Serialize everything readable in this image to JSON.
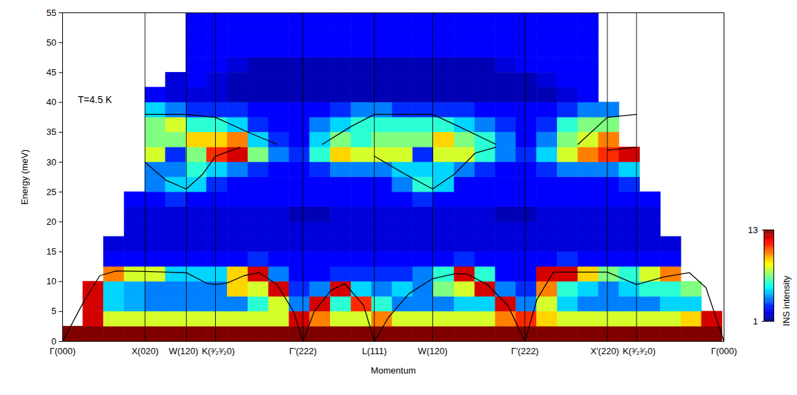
{
  "chart_data": {
    "type": "heatmap",
    "x_label": "Momentum",
    "y_label": "Energy (meV)",
    "annotations": [
      "T=4.5 K"
    ],
    "xlim": [
      0,
      16.038
    ],
    "xticks": [
      {
        "value": 0,
        "label": "Γ(000)"
      },
      {
        "value": 2,
        "label": "X(020)"
      },
      {
        "value": 3,
        "label": "W(120)"
      },
      {
        "value": 3.707,
        "label": "K(³⁄₂³⁄₂0)"
      },
      {
        "value": 5.828,
        "label": "Γ′(222)"
      },
      {
        "value": 7.56,
        "label": "L(111)"
      },
      {
        "value": 8.974,
        "label": "W(120)"
      },
      {
        "value": 11.21,
        "label": "Γ′(222)"
      },
      {
        "value": 13.21,
        "label": "X′(220)"
      },
      {
        "value": 13.917,
        "label": "K(³⁄₂³⁄₂0)"
      },
      {
        "value": 16.038,
        "label": "Γ(000)"
      }
    ],
    "ylim": [
      0,
      55
    ],
    "yticks": [
      0,
      5,
      10,
      15,
      20,
      25,
      30,
      35,
      40,
      45,
      50,
      55
    ],
    "grid": "x",
    "colorbar": {
      "label": "INS intensity",
      "range": [
        1,
        13
      ],
      "ticks": [
        1,
        13
      ]
    },
    "cells": {
      "x_bins": [
        0,
        0.5,
        1,
        1.5,
        2,
        2.5,
        3,
        3.5,
        4,
        4.5,
        5,
        5.5,
        6,
        6.5,
        7,
        7.5,
        8,
        8.5,
        9,
        9.5,
        10,
        10.5,
        11,
        11.5,
        12,
        12.5,
        13,
        13.5,
        14,
        14.5,
        15,
        15.5,
        16
      ],
      "y_bins": [
        0,
        2.5,
        5,
        7.5,
        10,
        12.5,
        15,
        17.5,
        20,
        22.5,
        25,
        27.5,
        30,
        32.5,
        35,
        37.5,
        40,
        42.5,
        45,
        47.5,
        50,
        52.5,
        55
      ],
      "values": [
        [
          13,
          13,
          13,
          13,
          13,
          13,
          13,
          13,
          13,
          13,
          13,
          13,
          13,
          13,
          13,
          13,
          13,
          13,
          13,
          13,
          13,
          13,
          13,
          13,
          13,
          13,
          13,
          13,
          13,
          13,
          13,
          13
        ],
        [
          null,
          12,
          8,
          8,
          8,
          8,
          8,
          8,
          8,
          8,
          8,
          12,
          10,
          8,
          8,
          10,
          8,
          8,
          8,
          8,
          8,
          10,
          11,
          9,
          8,
          8,
          8,
          8,
          8,
          8,
          9,
          12
        ],
        [
          null,
          12,
          5,
          4.5,
          4,
          4,
          4,
          4,
          4,
          6,
          8,
          4,
          12,
          6,
          11,
          6,
          4,
          4,
          4,
          5,
          5,
          12,
          4,
          8,
          5,
          4,
          4,
          4,
          4,
          5,
          5,
          null
        ],
        [
          null,
          12,
          5,
          4.5,
          4,
          4,
          4,
          4,
          9,
          8,
          12,
          3,
          4,
          12,
          5,
          4,
          5,
          4,
          7,
          8,
          12,
          4,
          3,
          10,
          6,
          5,
          4,
          5,
          6,
          6,
          7,
          null
        ],
        [
          null,
          null,
          10,
          8,
          8,
          5,
          5,
          5,
          9,
          12,
          4,
          2.5,
          2.5,
          3,
          3,
          3,
          3,
          4,
          6,
          12,
          6,
          2.5,
          2.5,
          12,
          12,
          9,
          7,
          6,
          8,
          10,
          null,
          null
        ],
        [
          null,
          null,
          2.5,
          2.5,
          2.5,
          2.5,
          2.5,
          2.5,
          2.5,
          3,
          2.5,
          2.5,
          2.5,
          2.5,
          2.5,
          2.5,
          2.5,
          2.5,
          2.5,
          3,
          2.5,
          2.5,
          2.5,
          2.5,
          3,
          2.5,
          2.5,
          2.5,
          2.5,
          2.5,
          null,
          null
        ],
        [
          null,
          null,
          2,
          2,
          2,
          2,
          2,
          2,
          2,
          2,
          2,
          2,
          2,
          2,
          2,
          2,
          2,
          2,
          2,
          2,
          2,
          2,
          2,
          2,
          2,
          2,
          2,
          2,
          2,
          2,
          null,
          null
        ],
        [
          null,
          null,
          null,
          2,
          2,
          2,
          2,
          2,
          2,
          2,
          2,
          2,
          2,
          2,
          2,
          2,
          2,
          2,
          2,
          2,
          2,
          2,
          2,
          2,
          2,
          2,
          2,
          2,
          2,
          null,
          null,
          null
        ],
        [
          null,
          null,
          null,
          2,
          2,
          2,
          2,
          2,
          2,
          2,
          2,
          1.5,
          1.5,
          2,
          2,
          2,
          2,
          2,
          2,
          2,
          2,
          1.5,
          1.5,
          2,
          2,
          2,
          2,
          2,
          2,
          null,
          null,
          null
        ],
        [
          null,
          null,
          null,
          2.5,
          2.5,
          3,
          2.5,
          2.5,
          2.5,
          2.5,
          2.5,
          2.5,
          2.5,
          2.5,
          2.5,
          2.5,
          2.5,
          3,
          2.5,
          2.5,
          2.5,
          2.5,
          2.5,
          2.5,
          2.5,
          2.5,
          2.5,
          2.5,
          2.5,
          null,
          null,
          null
        ],
        [
          null,
          null,
          null,
          null,
          4,
          5,
          5,
          3,
          2.5,
          2.5,
          2.5,
          2.5,
          2.5,
          2.5,
          2.5,
          2.5,
          4,
          6,
          5,
          2.5,
          2.5,
          2.5,
          2.5,
          2.5,
          2.5,
          2.5,
          2.5,
          3,
          null,
          null,
          null,
          null
        ],
        [
          null,
          null,
          null,
          null,
          4,
          4,
          6,
          5,
          4,
          3,
          2.5,
          2.5,
          3,
          4,
          4,
          4,
          5,
          5,
          5,
          4,
          3,
          2.5,
          2.5,
          3,
          4,
          4,
          4,
          5,
          null,
          null,
          null,
          null
        ],
        [
          null,
          null,
          null,
          null,
          8,
          3,
          7,
          11,
          12,
          7,
          4,
          3,
          6,
          9,
          8,
          8,
          8,
          3,
          8,
          8,
          6,
          4,
          3,
          5,
          8,
          10,
          11,
          12,
          null,
          null,
          null,
          null
        ],
        [
          null,
          null,
          null,
          null,
          7,
          7,
          9,
          9,
          10,
          5,
          3,
          2.5,
          5,
          7,
          6,
          7,
          7,
          7,
          9,
          7,
          6,
          4,
          2.5,
          4,
          7,
          8,
          10,
          null,
          null,
          null,
          null,
          null
        ],
        [
          null,
          null,
          null,
          null,
          7,
          8,
          6,
          6,
          5,
          3,
          2.5,
          2.5,
          4,
          5,
          6,
          6,
          6,
          6,
          6,
          5,
          4,
          3,
          2.5,
          3,
          6,
          7,
          7,
          null,
          null,
          null,
          null,
          null
        ],
        [
          null,
          null,
          null,
          null,
          5,
          4,
          3,
          3,
          3,
          2.5,
          2.5,
          2.5,
          2.5,
          3,
          4,
          4,
          3,
          3,
          3,
          3,
          2.5,
          2.5,
          2.5,
          2.5,
          3,
          4,
          4,
          null,
          null,
          null,
          null,
          null
        ],
        [
          null,
          null,
          null,
          null,
          2.5,
          2,
          2,
          2,
          1.5,
          1.5,
          1.5,
          1.5,
          1.5,
          1.5,
          1.5,
          1.5,
          1.5,
          1.5,
          1.5,
          1.5,
          1.5,
          1.5,
          1.5,
          1.5,
          2,
          2.5,
          null,
          null,
          null,
          null,
          null,
          null
        ],
        [
          null,
          null,
          null,
          null,
          null,
          2,
          2.5,
          2,
          1.5,
          1.5,
          1.5,
          1.5,
          1.5,
          1.5,
          1.5,
          1.5,
          1.5,
          1.5,
          1.5,
          1.5,
          1.5,
          1.5,
          1.5,
          2,
          2.5,
          2.5,
          null,
          null,
          null,
          null,
          null,
          null
        ],
        [
          null,
          null,
          null,
          null,
          null,
          null,
          2.5,
          2.5,
          2,
          1.5,
          1.5,
          1.5,
          1.5,
          1.5,
          1.5,
          1.5,
          1.5,
          1.5,
          1.5,
          1.5,
          1.5,
          2,
          2.5,
          2.5,
          2.5,
          2.5,
          null,
          null,
          null,
          null,
          null,
          null
        ],
        [
          null,
          null,
          null,
          null,
          null,
          null,
          2.5,
          2.5,
          2.5,
          2.5,
          2.5,
          2.5,
          2.5,
          2.5,
          2.5,
          2.5,
          2.5,
          2.5,
          2.5,
          2.5,
          2.5,
          2.5,
          2.5,
          2.5,
          2.5,
          2.5,
          null,
          null,
          null,
          null,
          null,
          null
        ],
        [
          null,
          null,
          null,
          null,
          null,
          null,
          2.5,
          2.5,
          2.5,
          2.5,
          2.5,
          2.5,
          2.5,
          2.5,
          2.5,
          2.5,
          2.5,
          2.5,
          2.5,
          2.5,
          2.5,
          2.5,
          2.5,
          2.5,
          2.5,
          2.5,
          null,
          null,
          null,
          null,
          null,
          null
        ],
        [
          null,
          null,
          null,
          null,
          null,
          null,
          2.5,
          2.5,
          2.5,
          2.5,
          2.5,
          2.5,
          2.5,
          2.5,
          2.5,
          2.5,
          2.5,
          2.5,
          2.5,
          2.5,
          2.5,
          2.5,
          2.5,
          2.5,
          2.5,
          2.5,
          null,
          null,
          null,
          null,
          null,
          null
        ]
      ]
    },
    "series": [
      {
        "type": "line",
        "color": "#000000",
        "line_style": "solid",
        "x": [
          0,
          0.5,
          0.9,
          1.3,
          2,
          3,
          3.5,
          3.707,
          4,
          4.4,
          4.77,
          5.2,
          5.6,
          5.828,
          6.1,
          6.5,
          6.84,
          7.3,
          7.56,
          7.9,
          8.4,
          8.974,
          9.5,
          9.8,
          10.3,
          10.8,
          11.21,
          11.5,
          11.9,
          13.21,
          13.917,
          14.6,
          15.2,
          15.6,
          16.038
        ],
        "values": [
          0,
          6.5,
          11,
          11.8,
          11.7,
          11.5,
          9.7,
          9.5,
          9.8,
          11,
          11.5,
          9.5,
          5,
          0,
          5,
          8.5,
          9.7,
          6,
          0,
          4,
          8,
          10.5,
          11.3,
          11.3,
          9.5,
          6,
          0,
          7,
          11.6,
          11.6,
          9.5,
          10.8,
          11.5,
          9,
          0
        ]
      },
      {
        "type": "line",
        "color": "#000000",
        "line_style": "solid",
        "x": [
          2,
          3,
          3.707,
          4.5,
          5.2,
          5.828,
          6.3,
          7,
          7.56,
          8.974,
          9.6,
          10.5,
          11.21,
          12.5,
          13.21,
          13.917
        ],
        "values": [
          38,
          38,
          37.5,
          35,
          33,
          null,
          33,
          36,
          38,
          38,
          36,
          33,
          null,
          33,
          37.5,
          38
        ]
      },
      {
        "type": "line",
        "color": "#000000",
        "line_style": "solid",
        "x": [
          2,
          2.5,
          3,
          3.4,
          3.707,
          4.3,
          5.828,
          7.56,
          8.3,
          8.974,
          9.5,
          10,
          10.5,
          11.21,
          13.21,
          13.917
        ],
        "values": [
          30,
          27,
          25.5,
          28,
          31,
          32.5,
          null,
          31,
          28,
          25.5,
          28,
          31.5,
          32.5,
          null,
          32,
          32.5
        ]
      }
    ]
  }
}
